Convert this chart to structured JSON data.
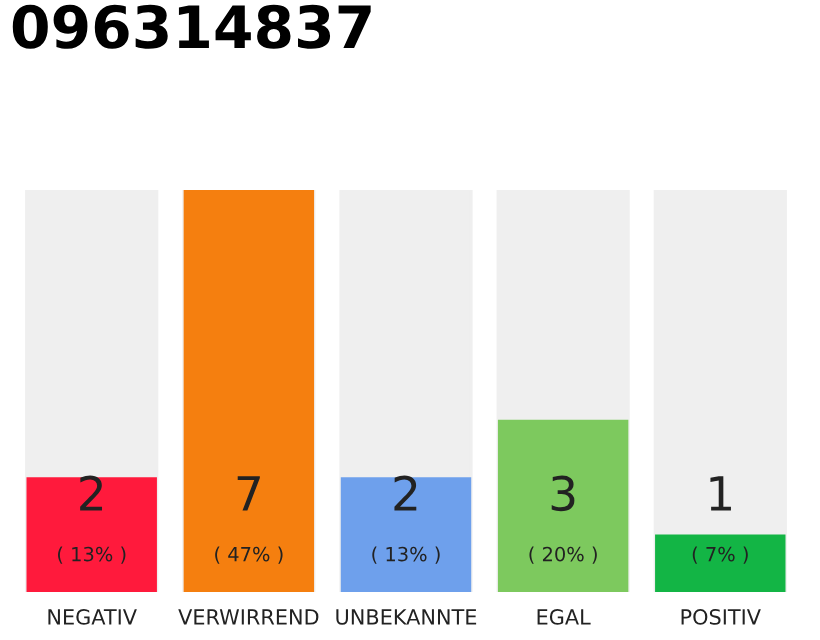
{
  "chart_data": {
    "type": "bar",
    "title": "096314837",
    "categories": [
      "NEGATIV",
      "VERWIRREND",
      "UNBEKANNTE",
      "EGAL",
      "POSITIV"
    ],
    "values": [
      2,
      7,
      2,
      3,
      1
    ],
    "colors": [
      "#ff1a3c",
      "#f57f0f",
      "#6ea0ec",
      "#7dc95e",
      "#13b545"
    ],
    "value_labels": [
      "2\n( 13% )",
      "7\n( 47% )",
      "2\n( 13% )",
      "3\n( 20% )",
      "1\n( 7% )"
    ],
    "grid": false,
    "legend": false
  }
}
